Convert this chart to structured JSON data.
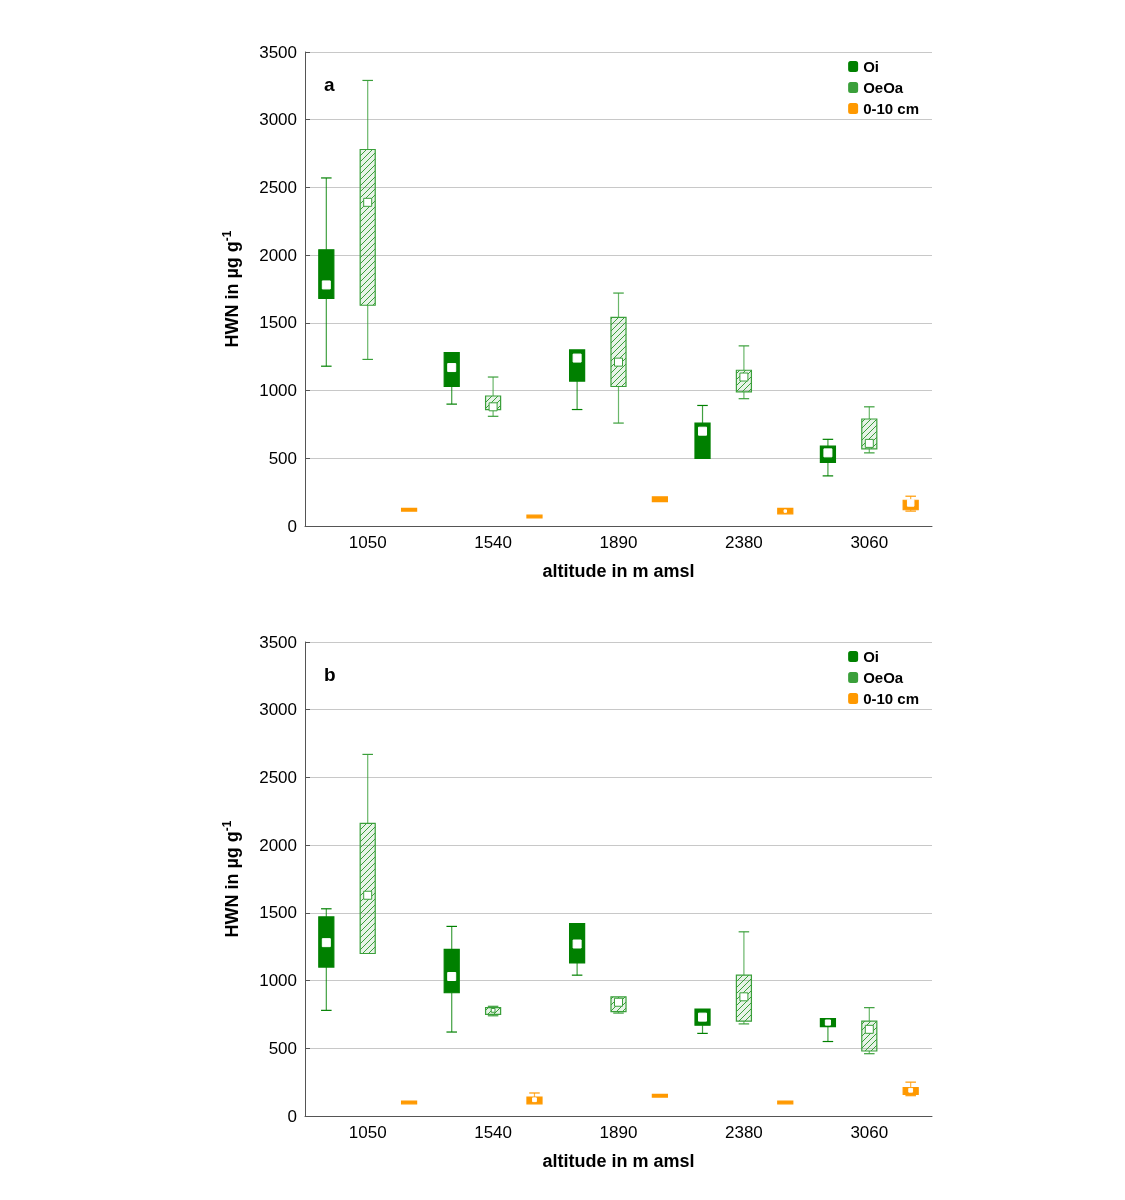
{
  "chart_data": [
    {
      "type": "box",
      "title": "a",
      "xlabel": "altitude in m amsl",
      "ylabel": "HWN in µg g$^{-1}$",
      "categories": [
        "1050",
        "1540",
        "1890",
        "2380",
        "3060"
      ],
      "ylim": [
        0,
        3500
      ],
      "yticks": [
        0,
        500,
        1000,
        1500,
        2000,
        2500,
        3000,
        3500
      ],
      "grid": "y",
      "legend": "top right",
      "series": [
        {
          "name": "Oi",
          "color": "#008000",
          "boxes": [
            {
              "low": 1180,
              "q1": 1680,
              "median": 1780,
              "q3": 2040,
              "high": 2570
            },
            {
              "low": 900,
              "q1": 1030,
              "median": 1170,
              "q3": 1280,
              "high": 1280
            },
            {
              "low": 860,
              "q1": 1070,
              "median": 1240,
              "q3": 1300,
              "high": 1300
            },
            {
              "low": 500,
              "q1": 500,
              "median": 700,
              "q3": 760,
              "high": 890
            },
            {
              "low": 370,
              "q1": 470,
              "median": 540,
              "q3": 590,
              "high": 640
            }
          ]
        },
        {
          "name": "OeOa",
          "color": "#3a9f3a",
          "boxes": [
            {
              "low": 1230,
              "q1": 1630,
              "median": 2390,
              "q3": 2780,
              "high": 3290
            },
            {
              "low": 810,
              "q1": 860,
              "median": 880,
              "q3": 960,
              "high": 1100
            },
            {
              "low": 760,
              "q1": 1030,
              "median": 1210,
              "q3": 1540,
              "high": 1720
            },
            {
              "low": 940,
              "q1": 990,
              "median": 1100,
              "q3": 1150,
              "high": 1330
            },
            {
              "low": 540,
              "q1": 570,
              "median": 610,
              "q3": 790,
              "high": 880
            }
          ]
        },
        {
          "name": "0-10 cm",
          "color": "#ff9900",
          "boxes": [
            {
              "low": 110,
              "q1": 110,
              "median": 120,
              "q3": 130,
              "high": 130
            },
            {
              "low": 60,
              "q1": 60,
              "median": 70,
              "q3": 80,
              "high": 80
            },
            {
              "low": 180,
              "q1": 180,
              "median": 200,
              "q3": 215,
              "high": 215
            },
            {
              "low": 90,
              "q1": 90,
              "median": 110,
              "q3": 130,
              "high": 130
            },
            {
              "low": 110,
              "q1": 120,
              "median": 170,
              "q3": 190,
              "high": 220
            }
          ]
        }
      ]
    },
    {
      "type": "box",
      "title": "b",
      "xlabel": "altitude in m amsl",
      "ylabel": "HWN in µg g$^{-1}$",
      "categories": [
        "1050",
        "1540",
        "1890",
        "2380",
        "3060"
      ],
      "ylim": [
        0,
        3500
      ],
      "yticks": [
        0,
        500,
        1000,
        1500,
        2000,
        2500,
        3000,
        3500
      ],
      "grid": "y",
      "legend": "top right",
      "series": [
        {
          "name": "Oi",
          "color": "#008000",
          "boxes": [
            {
              "low": 780,
              "q1": 1100,
              "median": 1280,
              "q3": 1470,
              "high": 1530
            },
            {
              "low": 620,
              "q1": 910,
              "median": 1030,
              "q3": 1230,
              "high": 1400
            },
            {
              "low": 1040,
              "q1": 1130,
              "median": 1270,
              "q3": 1420,
              "high": 1420
            },
            {
              "low": 610,
              "q1": 670,
              "median": 730,
              "q3": 790,
              "high": 790
            },
            {
              "low": 550,
              "q1": 660,
              "median": 690,
              "q3": 720,
              "high": 720
            }
          ]
        },
        {
          "name": "OeOa",
          "color": "#3a9f3a",
          "boxes": [
            {
              "low": 1200,
              "q1": 1200,
              "median": 1630,
              "q3": 2160,
              "high": 2670
            },
            {
              "low": 740,
              "q1": 750,
              "median": 780,
              "q3": 800,
              "high": 810
            },
            {
              "low": 760,
              "q1": 770,
              "median": 840,
              "q3": 880,
              "high": 880
            },
            {
              "low": 680,
              "q1": 700,
              "median": 880,
              "q3": 1040,
              "high": 1360
            },
            {
              "low": 460,
              "q1": 480,
              "median": 640,
              "q3": 700,
              "high": 800
            }
          ]
        },
        {
          "name": "0-10 cm",
          "color": "#ff9900",
          "boxes": [
            {
              "low": 90,
              "q1": 90,
              "median": 100,
              "q3": 110,
              "high": 110
            },
            {
              "low": 90,
              "q1": 90,
              "median": 120,
              "q3": 140,
              "high": 170
            },
            {
              "low": 140,
              "q1": 140,
              "median": 150,
              "q3": 160,
              "high": 160
            },
            {
              "low": 90,
              "q1": 90,
              "median": 100,
              "q3": 110,
              "high": 110
            },
            {
              "low": 150,
              "q1": 160,
              "median": 190,
              "q3": 210,
              "high": 250
            }
          ]
        }
      ]
    }
  ]
}
